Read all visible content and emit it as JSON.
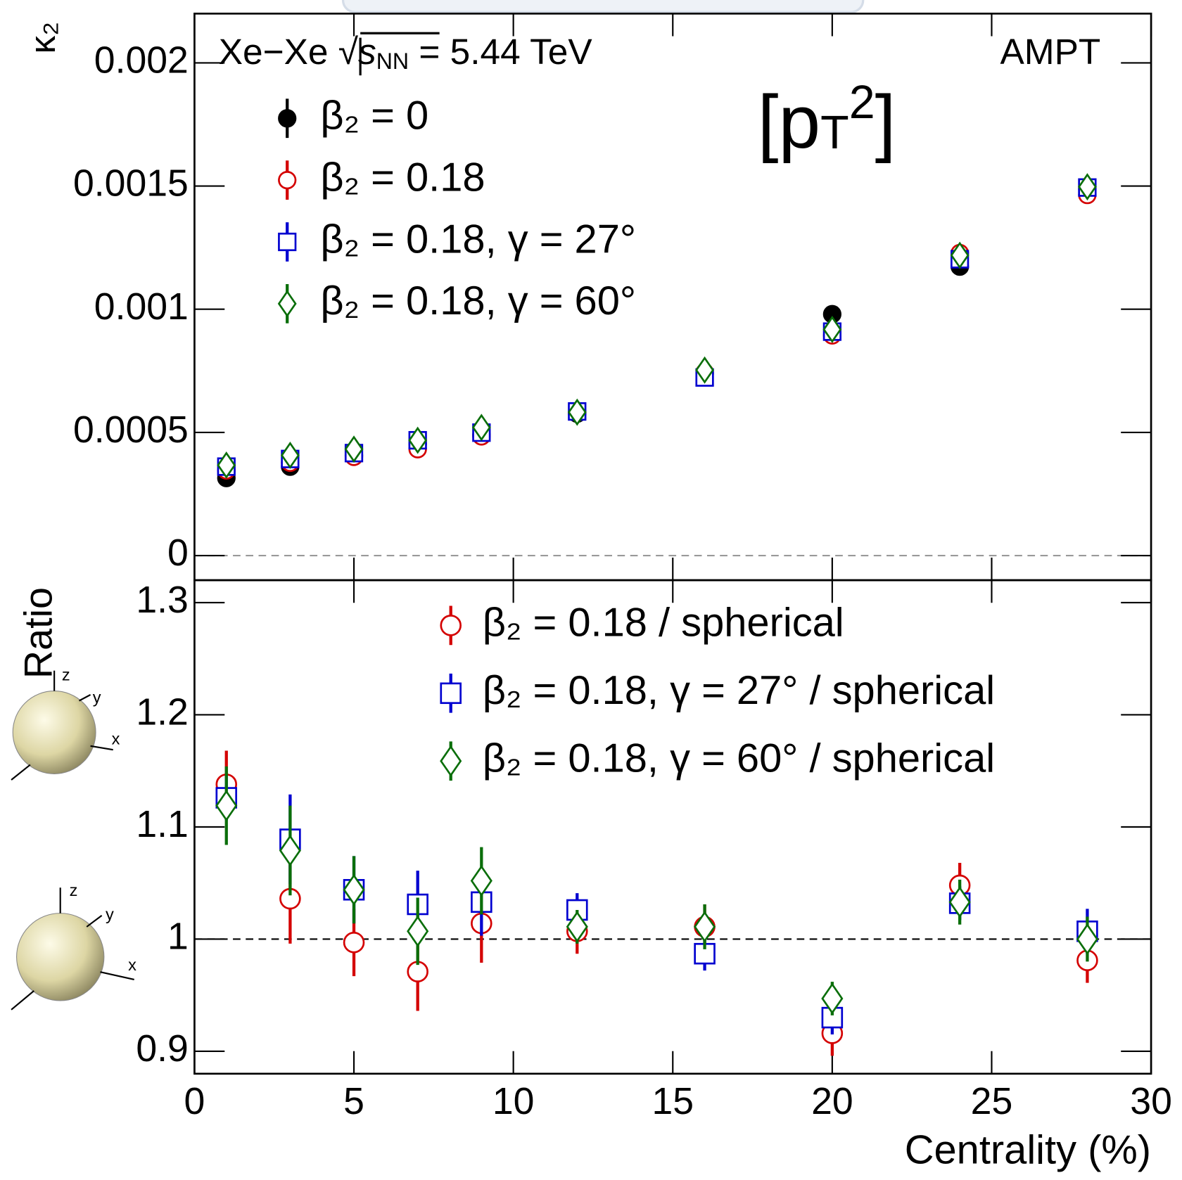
{
  "chart_data": [
    {
      "type": "scatter",
      "y_label": "κ₂",
      "annotation": [
        "Xe−Xe √",
        "s",
        "NN",
        " = 5.44 TeV"
      ],
      "model": "AMPT",
      "tag": [
        "[p",
        "T",
        "2",
        "]"
      ],
      "tag_color": "#1a9ff0",
      "x": [
        1,
        3,
        5,
        7,
        9,
        12,
        16,
        20,
        24,
        28
      ],
      "xlim": [
        0,
        30
      ],
      "xticks": [
        0,
        5,
        10,
        15,
        20,
        25,
        30
      ],
      "ylim": [
        -0.0001,
        0.0022
      ],
      "yticks": [
        0,
        0.0005,
        0.001,
        0.0015,
        0.002
      ],
      "hline": 0,
      "series": [
        {
          "name": "β₂ = 0",
          "color": "#000000",
          "marker": "circle-filled",
          "values": [
            0.000315,
            0.000361,
            0.000407,
            0.000453,
            0.00049,
            0.000576,
            0.000738,
            0.00098,
            0.001173,
            0.001488
          ]
        },
        {
          "name": "β₂ = 0.18",
          "color": "#d40000",
          "marker": "circle",
          "values": [
            0.000346,
            0.000377,
            0.000401,
            0.000432,
            0.000484,
            0.000582,
            0.000744,
            0.000894,
            0.001228,
            0.001464
          ]
        },
        {
          "name": "β₂ = 0.18, γ = 27°",
          "color": "#0000d0",
          "marker": "square",
          "values": [
            0.000361,
            0.000392,
            0.000416,
            0.000468,
            0.000499,
            0.000585,
            0.000723,
            0.000909,
            0.001203,
            0.001494
          ]
        },
        {
          "name": "β₂ = 0.18, γ = 60°",
          "color": "#0a6e0a",
          "marker": "diamond",
          "values": [
            0.000367,
            0.000407,
            0.000432,
            0.000468,
            0.00052,
            0.000582,
            0.000753,
            0.000918,
            0.001219,
            0.001497
          ]
        }
      ]
    },
    {
      "type": "scatter",
      "y_label": "Ratio",
      "x_label": "Centrality (%)",
      "x": [
        1,
        3,
        5,
        7,
        9,
        12,
        16,
        20,
        24,
        28
      ],
      "xlim": [
        0,
        30
      ],
      "xticks": [
        0,
        5,
        10,
        15,
        20,
        25,
        30
      ],
      "ylim": [
        0.88,
        1.32
      ],
      "yticks": [
        0.9,
        1,
        1.1,
        1.2,
        1.3
      ],
      "hline": 1,
      "series": [
        {
          "name": "β₂ = 0.18 / spherical",
          "color": "#d40000",
          "marker": "circle",
          "values": [
            1.138,
            1.036,
            0.997,
            0.971,
            1.014,
            1.007,
            1.011,
            0.916,
            1.048,
            0.981
          ],
          "errors": [
            0.03,
            0.04,
            0.03,
            0.035,
            0.035,
            0.02,
            0.02,
            0.02,
            0.02,
            0.02
          ]
        },
        {
          "name": "β₂ = 0.18, γ = 27° / spherical",
          "color": "#0000d0",
          "marker": "square",
          "values": [
            1.126,
            1.089,
            1.044,
            1.031,
            1.033,
            1.026,
            0.987,
            0.93,
            1.032,
            1.007
          ],
          "errors": [
            0.02,
            0.04,
            0.03,
            0.03,
            0.03,
            0.015,
            0.015,
            0.015,
            0.015,
            0.02
          ]
        },
        {
          "name": "β₂ = 0.18, γ = 60° / spherical",
          "color": "#0a6e0a",
          "marker": "diamond",
          "values": [
            1.119,
            1.079,
            1.044,
            1.007,
            1.052,
            1.011,
            1.011,
            0.947,
            1.033,
            1.0
          ],
          "errors": [
            0.035,
            0.04,
            0.03,
            0.03,
            0.03,
            0.015,
            0.02,
            0.015,
            0.02,
            0.02
          ]
        }
      ]
    }
  ],
  "insets": [
    {
      "axes": [
        "z",
        "y",
        "x"
      ]
    },
    {
      "axes": [
        "z",
        "y",
        "x"
      ]
    }
  ]
}
